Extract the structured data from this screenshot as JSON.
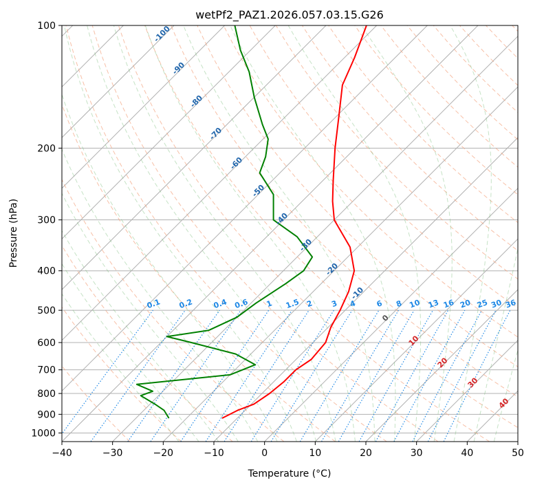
{
  "chart_data": {
    "type": "line",
    "title": "wetPf2_PAZ1.2026.057.03.15.G26",
    "xlabel": "Temperature (°C)",
    "ylabel": "Pressure (hPa)",
    "xlim": [
      -40,
      50
    ],
    "ylim": [
      1050,
      100
    ],
    "x_ticks": [
      -40,
      -30,
      -20,
      -10,
      0,
      10,
      20,
      30,
      40,
      50
    ],
    "x_tick_labels": [
      "−40",
      "−30",
      "−20",
      "−10",
      "0",
      "10",
      "20",
      "30",
      "40",
      "50"
    ],
    "y_ticks": [
      1000,
      900,
      800,
      700,
      600,
      500,
      400,
      300,
      200,
      100
    ],
    "y_tick_labels": [
      "1000",
      "900",
      "800",
      "700",
      "600",
      "500",
      "400",
      "300",
      "200",
      "100"
    ],
    "grid": true,
    "series": [
      {
        "name": "Temperature",
        "color": "#ff0000",
        "points": [
          {
            "p": 920,
            "t": -13.0
          },
          {
            "p": 880,
            "t": -11.5
          },
          {
            "p": 850,
            "t": -9.5
          },
          {
            "p": 800,
            "t": -8.5
          },
          {
            "p": 750,
            "t": -8.0
          },
          {
            "p": 700,
            "t": -8.0
          },
          {
            "p": 660,
            "t": -7.0
          },
          {
            "p": 600,
            "t": -7.5
          },
          {
            "p": 550,
            "t": -9.5
          },
          {
            "p": 500,
            "t": -11.0
          },
          {
            "p": 450,
            "t": -13.0
          },
          {
            "p": 400,
            "t": -16.0
          },
          {
            "p": 350,
            "t": -21.5
          },
          {
            "p": 300,
            "t": -30.0
          },
          {
            "p": 270,
            "t": -34.0
          },
          {
            "p": 240,
            "t": -38.0
          },
          {
            "p": 200,
            "t": -44.0
          },
          {
            "p": 170,
            "t": -49.0
          },
          {
            "p": 140,
            "t": -55.0
          },
          {
            "p": 120,
            "t": -58.0
          },
          {
            "p": 100,
            "t": -62.0
          }
        ]
      },
      {
        "name": "Dewpoint",
        "color": "#008000",
        "points": [
          {
            "p": 920,
            "t": -23.5
          },
          {
            "p": 880,
            "t": -26.0
          },
          {
            "p": 850,
            "t": -29.0
          },
          {
            "p": 810,
            "t": -33.5
          },
          {
            "p": 790,
            "t": -32.0
          },
          {
            "p": 760,
            "t": -36.5
          },
          {
            "p": 720,
            "t": -20.0
          },
          {
            "p": 680,
            "t": -17.0
          },
          {
            "p": 640,
            "t": -23.0
          },
          {
            "p": 600,
            "t": -34.0
          },
          {
            "p": 580,
            "t": -40.0
          },
          {
            "p": 560,
            "t": -33.0
          },
          {
            "p": 520,
            "t": -30.0
          },
          {
            "p": 480,
            "t": -29.0
          },
          {
            "p": 430,
            "t": -27.0
          },
          {
            "p": 400,
            "t": -26.0
          },
          {
            "p": 370,
            "t": -27.0
          },
          {
            "p": 330,
            "t": -34.0
          },
          {
            "p": 300,
            "t": -42.0
          },
          {
            "p": 260,
            "t": -47.0
          },
          {
            "p": 230,
            "t": -54.0
          },
          {
            "p": 210,
            "t": -56.0
          },
          {
            "p": 190,
            "t": -59.0
          },
          {
            "p": 175,
            "t": -63.0
          },
          {
            "p": 150,
            "t": -70.0
          },
          {
            "p": 130,
            "t": -76.0
          },
          {
            "p": 115,
            "t": -82.0
          },
          {
            "p": 100,
            "t": -88.0
          }
        ]
      }
    ],
    "dry_adiabat_labels": [
      "0",
      "10",
      "20",
      "30",
      "40"
    ],
    "moist_adiabat_labels": [
      "-100",
      "-90",
      "-80",
      "-70",
      "-60",
      "-50",
      "-40",
      "-30",
      "-20",
      "-10"
    ],
    "mixing_ratio_labels": [
      "0.1",
      "0.2",
      "0.4",
      "0.6",
      "1",
      "1.5",
      "2",
      "3",
      "4",
      "6",
      "8",
      "10",
      "13",
      "16",
      "20",
      "25",
      "30",
      "36"
    ],
    "mixing_ratio_values": [
      0.1,
      0.2,
      0.4,
      0.6,
      1,
      1.5,
      2,
      3,
      4,
      6,
      8,
      10,
      13,
      16,
      20,
      25,
      30,
      36
    ]
  }
}
